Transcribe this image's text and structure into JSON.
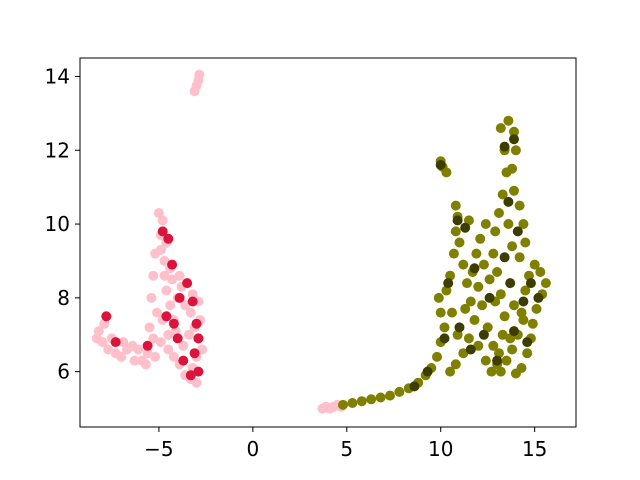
{
  "chart_data": {
    "type": "scatter",
    "title": "",
    "xlabel": "",
    "ylabel": "",
    "xlim": [
      -9.2,
      17.2
    ],
    "ylim": [
      4.5,
      14.5
    ],
    "xticks": [
      -5,
      0,
      5,
      10,
      15
    ],
    "xtick_labels": [
      "−5",
      "0",
      "5",
      "10",
      "15"
    ],
    "yticks": [
      6,
      8,
      10,
      12,
      14
    ],
    "ytick_labels": [
      "6",
      "8",
      "10",
      "12",
      "14"
    ],
    "grid": false,
    "legend": "none",
    "series": [
      {
        "color": "#ffc0cb",
        "points": [
          [
            -3.1,
            13.6
          ],
          [
            -3.0,
            13.75
          ],
          [
            -2.9,
            13.9
          ],
          [
            -2.85,
            14.05
          ],
          [
            -5.0,
            10.3
          ],
          [
            -4.8,
            10.1
          ],
          [
            -4.9,
            9.7
          ],
          [
            -4.6,
            9.5
          ],
          [
            -4.7,
            9.0
          ],
          [
            -4.4,
            8.8
          ],
          [
            -5.2,
            9.2
          ],
          [
            -5.3,
            8.6
          ],
          [
            -5.4,
            8.0
          ],
          [
            -5.1,
            7.6
          ],
          [
            -5.5,
            7.2
          ],
          [
            -5.3,
            6.9
          ],
          [
            -5.6,
            6.5
          ],
          [
            -5.7,
            6.2
          ],
          [
            -5.2,
            6.4
          ],
          [
            -4.9,
            6.8
          ],
          [
            -4.5,
            7.0
          ],
          [
            -4.2,
            7.4
          ],
          [
            -4.0,
            8.0
          ],
          [
            -3.8,
            8.3
          ],
          [
            -3.6,
            7.8
          ],
          [
            -3.3,
            7.6
          ],
          [
            -3.1,
            7.2
          ],
          [
            -2.9,
            6.9
          ],
          [
            -2.8,
            7.4
          ],
          [
            -3.0,
            6.4
          ],
          [
            -3.2,
            6.1
          ],
          [
            -3.3,
            5.8
          ],
          [
            -3.6,
            5.9
          ],
          [
            -3.9,
            6.2
          ],
          [
            -4.2,
            6.4
          ],
          [
            -4.5,
            6.6
          ],
          [
            -4.8,
            7.4
          ],
          [
            -4.6,
            8.2
          ],
          [
            -4.3,
            8.5
          ],
          [
            -3.9,
            8.6
          ],
          [
            -3.5,
            8.4
          ],
          [
            -3.2,
            8.1
          ],
          [
            -3.4,
            7.0
          ],
          [
            -3.7,
            6.7
          ],
          [
            -4.1,
            7.1
          ],
          [
            -4.4,
            7.8
          ],
          [
            -4.7,
            8.6
          ],
          [
            -4.9,
            9.3
          ],
          [
            -3.0,
            5.7
          ],
          [
            -2.7,
            6.6
          ],
          [
            -2.9,
            7.9
          ],
          [
            -8.2,
            7.1
          ],
          [
            -8.0,
            6.8
          ],
          [
            -7.7,
            6.6
          ],
          [
            -7.3,
            6.5
          ],
          [
            -7.0,
            6.4
          ],
          [
            -6.7,
            6.6
          ],
          [
            -6.4,
            6.7
          ],
          [
            -6.1,
            6.6
          ],
          [
            -5.9,
            6.3
          ],
          [
            -7.9,
            7.3
          ],
          [
            -8.3,
            6.9
          ],
          [
            -7.5,
            6.9
          ],
          [
            -6.9,
            6.8
          ],
          [
            -6.3,
            6.3
          ],
          [
            3.7,
            5.0
          ],
          [
            3.9,
            5.05
          ],
          [
            4.1,
            5.0
          ],
          [
            4.3,
            5.05
          ],
          [
            4.5,
            5.1
          ],
          [
            4.7,
            5.05
          ]
        ]
      },
      {
        "color": "#dc143c",
        "points": [
          [
            -4.8,
            9.8
          ],
          [
            -4.5,
            9.6
          ],
          [
            -4.3,
            8.9
          ],
          [
            -3.5,
            8.4
          ],
          [
            -3.2,
            7.9
          ],
          [
            -3.0,
            7.3
          ],
          [
            -2.9,
            6.9
          ],
          [
            -3.1,
            6.5
          ],
          [
            -3.3,
            5.9
          ],
          [
            -3.7,
            6.3
          ],
          [
            -4.0,
            6.9
          ],
          [
            -4.6,
            7.5
          ],
          [
            -5.6,
            6.7
          ],
          [
            -7.8,
            7.5
          ],
          [
            -7.3,
            6.8
          ],
          [
            -3.9,
            8.0
          ],
          [
            -4.2,
            7.3
          ],
          [
            -2.9,
            6.0
          ]
        ]
      },
      {
        "color": "#808000",
        "points": [
          [
            4.8,
            5.1
          ],
          [
            5.3,
            5.15
          ],
          [
            5.8,
            5.2
          ],
          [
            6.3,
            5.25
          ],
          [
            6.8,
            5.3
          ],
          [
            7.3,
            5.35
          ],
          [
            7.8,
            5.45
          ],
          [
            8.3,
            5.55
          ],
          [
            8.8,
            5.7
          ],
          [
            9.2,
            5.9
          ],
          [
            9.5,
            6.1
          ],
          [
            9.8,
            6.4
          ],
          [
            10.0,
            6.8
          ],
          [
            10.2,
            7.2
          ],
          [
            10.0,
            7.6
          ],
          [
            9.9,
            8.0
          ],
          [
            10.3,
            8.2
          ],
          [
            10.5,
            8.6
          ],
          [
            10.7,
            9.2
          ],
          [
            10.8,
            9.8
          ],
          [
            10.9,
            10.2
          ],
          [
            11.0,
            9.5
          ],
          [
            11.2,
            8.9
          ],
          [
            11.4,
            8.4
          ],
          [
            11.6,
            7.9
          ],
          [
            11.8,
            7.4
          ],
          [
            11.5,
            6.9
          ],
          [
            11.2,
            6.5
          ],
          [
            10.8,
            6.2
          ],
          [
            10.5,
            6.0
          ],
          [
            10.9,
            7.0
          ],
          [
            10.6,
            7.6
          ],
          [
            11.3,
            7.7
          ],
          [
            11.7,
            8.7
          ],
          [
            12.0,
            8.3
          ],
          [
            12.2,
            7.8
          ],
          [
            12.5,
            7.2
          ],
          [
            12.8,
            6.7
          ],
          [
            13.0,
            6.2
          ],
          [
            13.2,
            6.0
          ],
          [
            13.5,
            6.3
          ],
          [
            13.8,
            6.6
          ],
          [
            14.1,
            7.0
          ],
          [
            14.3,
            7.6
          ],
          [
            14.5,
            8.2
          ],
          [
            14.7,
            8.6
          ],
          [
            15.0,
            8.9
          ],
          [
            15.3,
            8.7
          ],
          [
            15.6,
            8.4
          ],
          [
            15.4,
            8.1
          ],
          [
            15.1,
            7.7
          ],
          [
            14.9,
            7.3
          ],
          [
            14.8,
            6.9
          ],
          [
            14.6,
            6.5
          ],
          [
            14.3,
            6.1
          ],
          [
            14.0,
            5.95
          ],
          [
            13.7,
            6.9
          ],
          [
            13.4,
            7.5
          ],
          [
            13.2,
            8.1
          ],
          [
            13.0,
            8.7
          ],
          [
            12.8,
            9.2
          ],
          [
            12.9,
            9.8
          ],
          [
            13.1,
            10.3
          ],
          [
            13.3,
            10.8
          ],
          [
            13.5,
            11.4
          ],
          [
            13.4,
            12.0
          ],
          [
            13.2,
            12.6
          ],
          [
            13.6,
            12.8
          ],
          [
            13.9,
            12.5
          ],
          [
            14.0,
            12.0
          ],
          [
            13.8,
            11.5
          ],
          [
            13.9,
            10.9
          ],
          [
            14.2,
            10.5
          ],
          [
            14.4,
            10.0
          ],
          [
            14.5,
            9.5
          ],
          [
            14.2,
            9.1
          ],
          [
            13.8,
            9.4
          ],
          [
            13.6,
            10.0
          ],
          [
            12.4,
            10.0
          ],
          [
            12.1,
            9.6
          ],
          [
            11.9,
            9.2
          ],
          [
            12.3,
            8.9
          ],
          [
            12.6,
            8.5
          ],
          [
            12.9,
            7.9
          ],
          [
            13.3,
            7.0
          ],
          [
            13.9,
            7.8
          ],
          [
            14.4,
            7.4
          ],
          [
            12.0,
            6.7
          ],
          [
            12.4,
            6.3
          ],
          [
            12.7,
            6.0
          ],
          [
            13.1,
            6.5
          ],
          [
            10.0,
            11.7
          ],
          [
            10.1,
            11.55
          ],
          [
            10.3,
            11.4
          ],
          [
            11.5,
            10.1
          ],
          [
            10.8,
            10.5
          ]
        ]
      },
      {
        "color": "#3d3d00",
        "points": [
          [
            10.0,
            11.6
          ],
          [
            10.9,
            10.1
          ],
          [
            11.3,
            9.9
          ],
          [
            10.4,
            8.4
          ],
          [
            11.0,
            7.2
          ],
          [
            11.6,
            6.6
          ],
          [
            12.3,
            7.0
          ],
          [
            13.4,
            9.1
          ],
          [
            14.1,
            9.8
          ],
          [
            13.7,
            8.4
          ],
          [
            14.4,
            7.9
          ],
          [
            14.8,
            8.4
          ],
          [
            15.2,
            8.0
          ],
          [
            13.9,
            7.1
          ],
          [
            13.0,
            6.3
          ],
          [
            12.6,
            8.0
          ],
          [
            13.4,
            12.1
          ],
          [
            13.9,
            12.3
          ],
          [
            13.6,
            10.6
          ],
          [
            8.6,
            5.6
          ],
          [
            9.3,
            6.0
          ],
          [
            10.2,
            6.9
          ],
          [
            11.8,
            8.8
          ],
          [
            14.6,
            6.8
          ]
        ]
      }
    ]
  }
}
